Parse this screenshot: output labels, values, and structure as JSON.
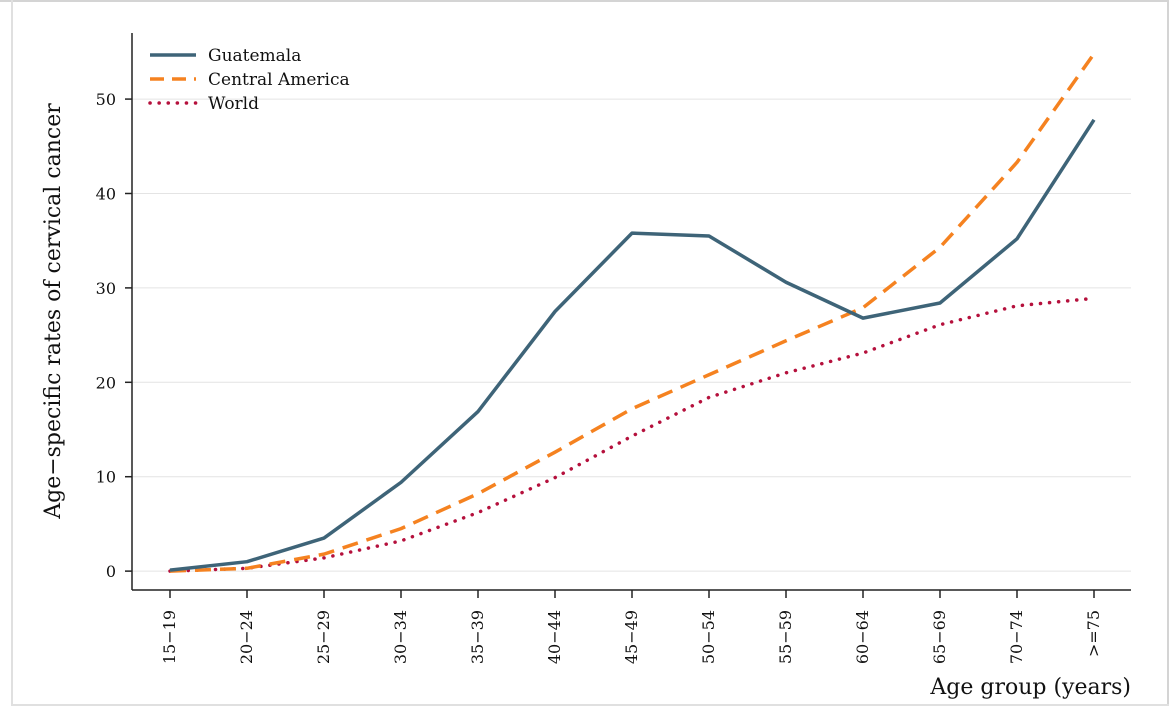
{
  "chart_data": {
    "type": "line",
    "title": "",
    "xlabel": "Age group (years)",
    "ylabel": "Age−specific rates of cervical cancer",
    "categories": [
      "15−19",
      "20−24",
      "25−29",
      "30−34",
      "35−39",
      "40−44",
      "45−49",
      "50−54",
      "55−59",
      "60−64",
      "65−69",
      "70−74",
      ">=75"
    ],
    "yticks": [
      0,
      10,
      20,
      30,
      40,
      50
    ],
    "ylim": [
      -2,
      57
    ],
    "grid": true,
    "legend_position": "top-left",
    "series": [
      {
        "name": "Guatemala",
        "style": "solid",
        "color": "#3e6478",
        "values": [
          0.1,
          1.0,
          3.5,
          9.4,
          16.9,
          27.5,
          35.8,
          35.5,
          30.6,
          26.8,
          28.4,
          35.2,
          47.8
        ]
      },
      {
        "name": "Central America",
        "style": "dashed",
        "color": "#f58220",
        "values": [
          0.0,
          0.3,
          1.8,
          4.5,
          8.2,
          12.6,
          17.2,
          20.8,
          24.4,
          27.9,
          34.3,
          43.3,
          54.8
        ]
      },
      {
        "name": "World",
        "style": "dotted",
        "color": "#b5103c",
        "values": [
          0.0,
          0.3,
          1.4,
          3.2,
          6.2,
          9.9,
          14.3,
          18.4,
          21.0,
          23.1,
          26.1,
          28.1,
          28.9
        ]
      }
    ]
  }
}
